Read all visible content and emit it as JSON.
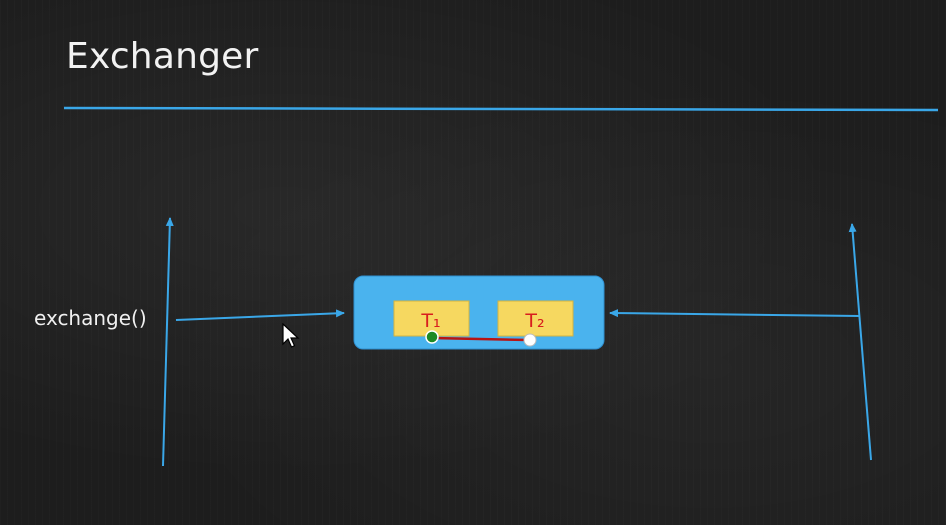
{
  "title": "Exchanger",
  "left_thread": {
    "call_label": "exchange()"
  },
  "exchanger_box": {
    "slots": [
      {
        "label": "T₁"
      },
      {
        "label": "T₂"
      }
    ]
  },
  "colors": {
    "line_blue": "#3aa7e8",
    "box_blue": "#4ab3ee",
    "slot_yellow": "#f6d860",
    "slot_text_red": "#d81e1e",
    "link_red": "#b81414",
    "node_green": "#1e8a24",
    "node_white": "#ffffff",
    "background": "#1d1d1d"
  }
}
